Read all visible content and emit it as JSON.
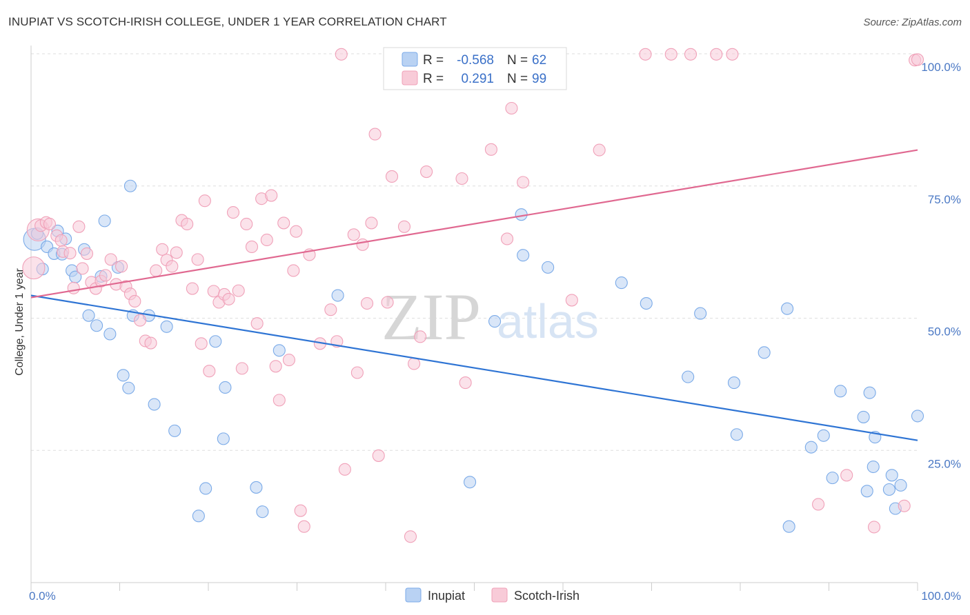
{
  "chart_data": {
    "type": "scatter",
    "title": "INUPIAT VS SCOTCH-IRISH COLLEGE, UNDER 1 YEAR CORRELATION CHART",
    "source": "Source: ZipAtlas.com",
    "xlabel": "",
    "ylabel": "College, Under 1 year",
    "xlim": [
      0,
      100
    ],
    "ylim": [
      0,
      100
    ],
    "x_tick_labels": [
      {
        "value": 0,
        "label": "0.0%"
      },
      {
        "value": 100,
        "label": "100.0%"
      }
    ],
    "y_tick_labels": [
      {
        "value": 25,
        "label": "25.0%"
      },
      {
        "value": 50,
        "label": "50.0%"
      },
      {
        "value": 75,
        "label": "75.0%"
      },
      {
        "value": 100,
        "label": "100.0%"
      }
    ],
    "watermark": {
      "part1": "ZIP",
      "part2": "atlas"
    },
    "legend_stats": [
      {
        "r_label": "R =",
        "r_value": "-0.568",
        "n_label": "N =",
        "n_value": "62"
      },
      {
        "r_label": "R =",
        "r_value": "0.291",
        "n_label": "N =",
        "n_value": "99"
      }
    ],
    "series": [
      {
        "name": "Inupiat",
        "color": "#7aaae8",
        "fill": "#b9d2f3",
        "line_color": "#2e74d4",
        "trend": {
          "x": [
            0,
            100
          ],
          "y": [
            54.3,
            26.9
          ]
        },
        "points": [
          [
            0.4,
            64.9
          ],
          [
            0.7,
            66.0
          ],
          [
            1.3,
            59.3
          ],
          [
            1.8,
            63.5
          ],
          [
            2.6,
            62.2
          ],
          [
            3.0,
            66.5
          ],
          [
            3.5,
            62.1
          ],
          [
            3.9,
            65.0
          ],
          [
            4.6,
            59.0
          ],
          [
            5.0,
            57.8
          ],
          [
            6.0,
            63.0
          ],
          [
            6.5,
            50.5
          ],
          [
            7.4,
            48.6
          ],
          [
            7.9,
            57.9
          ],
          [
            8.3,
            68.4
          ],
          [
            8.9,
            47.0
          ],
          [
            9.8,
            59.6
          ],
          [
            10.4,
            39.2
          ],
          [
            11.0,
            36.8
          ],
          [
            11.2,
            75.0
          ],
          [
            11.5,
            50.5
          ],
          [
            13.3,
            50.5
          ],
          [
            13.9,
            33.7
          ],
          [
            15.3,
            48.4
          ],
          [
            16.2,
            28.7
          ],
          [
            18.9,
            12.6
          ],
          [
            19.7,
            17.8
          ],
          [
            20.8,
            45.6
          ],
          [
            21.7,
            27.2
          ],
          [
            21.9,
            36.9
          ],
          [
            25.4,
            18.0
          ],
          [
            26.1,
            13.4
          ],
          [
            28.0,
            43.9
          ],
          [
            34.6,
            54.3
          ],
          [
            49.5,
            19.0
          ],
          [
            52.3,
            49.4
          ],
          [
            55.3,
            69.6
          ],
          [
            55.5,
            61.9
          ],
          [
            58.3,
            59.6
          ],
          [
            66.6,
            56.7
          ],
          [
            69.4,
            52.8
          ],
          [
            74.1,
            38.9
          ],
          [
            75.5,
            50.9
          ],
          [
            79.3,
            37.8
          ],
          [
            79.6,
            28.0
          ],
          [
            82.7,
            43.5
          ],
          [
            85.3,
            51.8
          ],
          [
            85.5,
            10.6
          ],
          [
            88.0,
            25.6
          ],
          [
            89.4,
            27.8
          ],
          [
            90.4,
            19.8
          ],
          [
            91.3,
            36.2
          ],
          [
            93.9,
            31.3
          ],
          [
            94.3,
            17.3
          ],
          [
            94.6,
            35.9
          ],
          [
            95.0,
            21.9
          ],
          [
            95.2,
            27.5
          ],
          [
            96.8,
            17.6
          ],
          [
            97.1,
            20.3
          ],
          [
            97.5,
            14.0
          ],
          [
            98.1,
            18.4
          ],
          [
            100.0,
            31.5
          ]
        ]
      },
      {
        "name": "Scotch-Irish",
        "color": "#f0a0b8",
        "fill": "#f8cbd8",
        "line_color": "#e06890",
        "trend": {
          "x": [
            0,
            100
          ],
          "y": [
            53.9,
            81.8
          ]
        },
        "points": [
          [
            0.3,
            59.5
          ],
          [
            0.8,
            66.7
          ],
          [
            1.1,
            67.5
          ],
          [
            1.7,
            68.1
          ],
          [
            2.1,
            67.8
          ],
          [
            2.9,
            65.6
          ],
          [
            3.4,
            64.7
          ],
          [
            3.6,
            62.6
          ],
          [
            4.4,
            62.3
          ],
          [
            4.8,
            55.7
          ],
          [
            5.4,
            67.3
          ],
          [
            5.8,
            59.4
          ],
          [
            6.3,
            62.2
          ],
          [
            6.8,
            56.8
          ],
          [
            7.3,
            55.6
          ],
          [
            7.9,
            57.0
          ],
          [
            8.4,
            58.1
          ],
          [
            9.0,
            61.1
          ],
          [
            9.6,
            56.4
          ],
          [
            10.2,
            59.8
          ],
          [
            10.7,
            56.0
          ],
          [
            11.2,
            54.6
          ],
          [
            11.7,
            53.2
          ],
          [
            12.3,
            49.6
          ],
          [
            12.9,
            45.7
          ],
          [
            13.5,
            45.3
          ],
          [
            14.1,
            59.0
          ],
          [
            14.8,
            63.0
          ],
          [
            15.3,
            61.0
          ],
          [
            15.9,
            59.8
          ],
          [
            16.4,
            62.4
          ],
          [
            17.0,
            68.5
          ],
          [
            17.6,
            67.8
          ],
          [
            18.2,
            55.6
          ],
          [
            18.8,
            61.1
          ],
          [
            19.2,
            45.2
          ],
          [
            19.6,
            72.2
          ],
          [
            20.1,
            40.0
          ],
          [
            20.6,
            55.1
          ],
          [
            21.2,
            53.0
          ],
          [
            21.8,
            54.5
          ],
          [
            22.3,
            53.6
          ],
          [
            22.8,
            70.0
          ],
          [
            23.4,
            55.2
          ],
          [
            23.8,
            40.5
          ],
          [
            24.3,
            67.8
          ],
          [
            24.9,
            63.5
          ],
          [
            25.5,
            49.0
          ],
          [
            26.0,
            72.6
          ],
          [
            26.6,
            64.8
          ],
          [
            27.1,
            73.2
          ],
          [
            27.6,
            40.9
          ],
          [
            28.0,
            34.5
          ],
          [
            28.5,
            68.0
          ],
          [
            29.1,
            42.1
          ],
          [
            29.6,
            59.0
          ],
          [
            29.9,
            66.4
          ],
          [
            30.4,
            13.6
          ],
          [
            30.8,
            10.6
          ],
          [
            31.4,
            62.0
          ],
          [
            32.6,
            45.2
          ],
          [
            33.8,
            51.6
          ],
          [
            34.5,
            45.6
          ],
          [
            35.0,
            99.9
          ],
          [
            35.4,
            21.4
          ],
          [
            36.4,
            65.8
          ],
          [
            36.8,
            39.7
          ],
          [
            37.4,
            63.9
          ],
          [
            37.9,
            52.8
          ],
          [
            38.4,
            68.0
          ],
          [
            38.8,
            84.8
          ],
          [
            39.2,
            24.0
          ],
          [
            40.2,
            53.0
          ],
          [
            40.7,
            76.8
          ],
          [
            41.5,
            99.9
          ],
          [
            42.1,
            67.3
          ],
          [
            42.8,
            8.7
          ],
          [
            43.2,
            41.4
          ],
          [
            43.9,
            46.5
          ],
          [
            44.6,
            77.7
          ],
          [
            48.6,
            76.4
          ],
          [
            49.0,
            37.8
          ],
          [
            51.9,
            81.9
          ],
          [
            53.7,
            65.0
          ],
          [
            54.2,
            89.7
          ],
          [
            55.5,
            75.7
          ],
          [
            61.0,
            53.4
          ],
          [
            64.1,
            81.8
          ],
          [
            69.3,
            99.9
          ],
          [
            72.2,
            99.9
          ],
          [
            74.4,
            99.9
          ],
          [
            77.3,
            99.9
          ],
          [
            79.1,
            99.9
          ],
          [
            88.8,
            14.8
          ],
          [
            92.0,
            20.3
          ],
          [
            95.1,
            10.5
          ],
          [
            98.5,
            14.5
          ],
          [
            99.7,
            98.8
          ],
          [
            100.0,
            98.9
          ]
        ]
      }
    ]
  }
}
